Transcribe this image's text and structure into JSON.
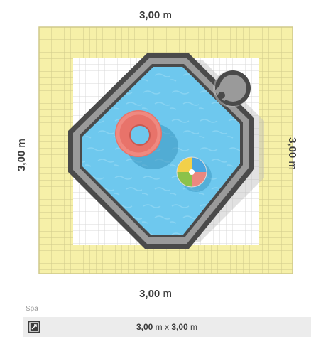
{
  "dimensions": {
    "top": {
      "value": "3,00",
      "unit": "m"
    },
    "left": {
      "value": "3,00",
      "unit": "m"
    },
    "right": {
      "value": "3,00",
      "unit": "m"
    },
    "bottom": {
      "value": "3,00",
      "unit": "m"
    }
  },
  "spa": {
    "label": "Spa",
    "icon": "resize-icon",
    "size": {
      "width": "3,00",
      "width_unit": "m",
      "separator": "x",
      "depth": "3,00",
      "depth_unit": "m"
    }
  },
  "colors": {
    "tile_yellow": "#f6f0a8",
    "tile_grout": "#cfc98a",
    "deck_white": "#ffffff",
    "deck_grout": "#d8d8d8",
    "pool_frame": "#4a4a4a",
    "pool_coping": "#9a9a9a",
    "pool_water": "#6ec8ee",
    "float_ring": "#e8736a",
    "beach_ball_yellow": "#f2d04a",
    "beach_ball_green": "#8cc24a",
    "beach_ball_blue": "#4aa6e0"
  },
  "objects": [
    "swim-ring",
    "beach-ball",
    "pool-ladder"
  ]
}
